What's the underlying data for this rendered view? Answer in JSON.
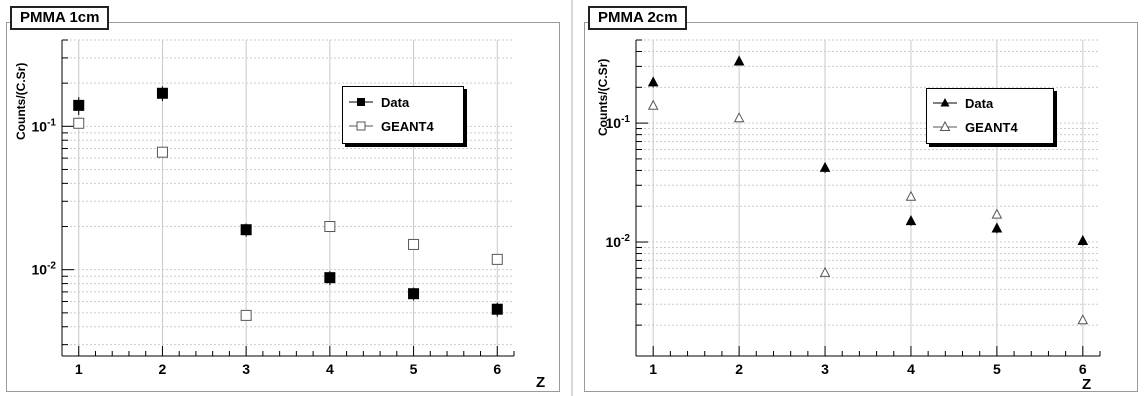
{
  "chart_data": [
    {
      "type": "scatter",
      "title": "PMMA 1cm",
      "xlabel": "Z",
      "ylabel": "Counts/(C.Sr)",
      "yscale": "log",
      "xlim": [
        0.8,
        6.2
      ],
      "ylim": [
        0.0025,
        0.4
      ],
      "x_ticks": [
        "1",
        "2",
        "3",
        "4",
        "5",
        "6"
      ],
      "y_ticks": [
        {
          "value": 0.1,
          "label": "10-1"
        },
        {
          "value": 0.01,
          "label": "10-2"
        }
      ],
      "grid": true,
      "legend_position": "top-right",
      "series": [
        {
          "name": "Data",
          "marker": "filled-square",
          "color": "#000000",
          "x": [
            1,
            2,
            3,
            4,
            5,
            6
          ],
          "y": [
            0.14,
            0.17,
            0.019,
            0.0088,
            0.0068,
            0.0053
          ],
          "err": [
            0.02,
            0.02,
            0.002,
            0.001,
            0.0007,
            0.0006
          ]
        },
        {
          "name": "GEANT4",
          "marker": "open-square",
          "color": "#555555",
          "x": [
            1,
            2,
            3,
            4,
            5,
            6
          ],
          "y": [
            0.105,
            0.066,
            0.0048,
            0.02,
            0.015,
            0.0118
          ]
        }
      ]
    },
    {
      "type": "scatter",
      "title": "PMMA 2cm",
      "xlabel": "Z",
      "ylabel": "Counts/(C.Sr)",
      "yscale": "log",
      "xlim": [
        0.8,
        6.2
      ],
      "ylim": [
        0.0011,
        0.5
      ],
      "x_ticks": [
        "1",
        "2",
        "3",
        "4",
        "5",
        "6"
      ],
      "y_ticks": [
        {
          "value": 0.1,
          "label": "10-1"
        },
        {
          "value": 0.01,
          "label": "10-2"
        }
      ],
      "grid": true,
      "legend_position": "top-right",
      "series": [
        {
          "name": "Data",
          "marker": "filled-triangle",
          "color": "#000000",
          "x": [
            1,
            2,
            3,
            4,
            5,
            6
          ],
          "y": [
            0.22,
            0.33,
            0.042,
            0.015,
            0.013,
            0.0102
          ],
          "err": [
            0.02,
            0.025,
            0.004,
            0.0013,
            0.0012,
            0.0009
          ]
        },
        {
          "name": "GEANT4",
          "marker": "open-triangle",
          "color": "#555555",
          "x": [
            1,
            2,
            3,
            4,
            5,
            6
          ],
          "y": [
            0.14,
            0.11,
            0.0055,
            0.024,
            0.017,
            0.0022
          ]
        }
      ]
    }
  ]
}
